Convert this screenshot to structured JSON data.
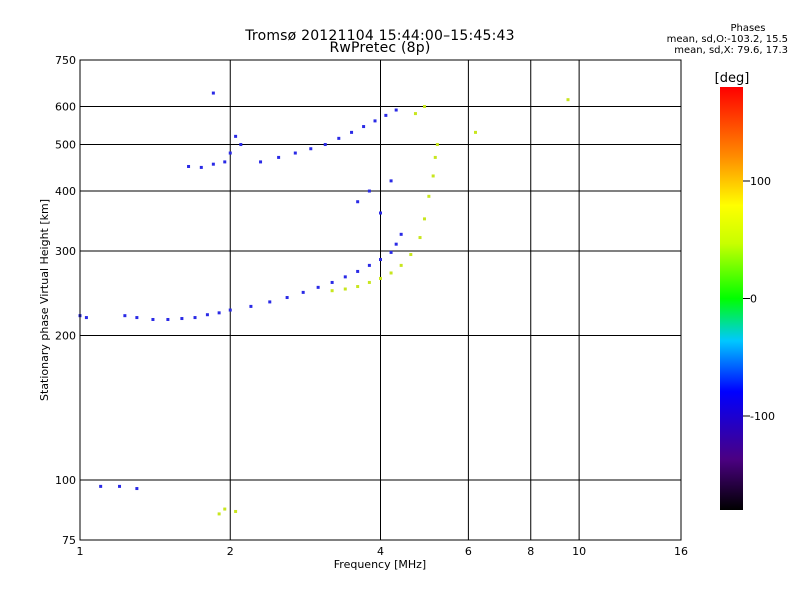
{
  "header": {
    "title": "Tromsø 20121104 15:44:00–15:45:43",
    "subtitle": "RwPretec (8p)"
  },
  "phases_box": {
    "heading": "Phases",
    "line_o": "mean, sd,O:-103.2, 15.5",
    "line_x": "mean, sd,X:  79.6, 17.3"
  },
  "colorbar": {
    "label": "[deg]",
    "range": [
      -180,
      180
    ],
    "ticks": [
      {
        "value": 100,
        "label": "100"
      },
      {
        "value": 0,
        "label": "0"
      },
      {
        "value": -100,
        "label": "-100"
      }
    ]
  },
  "chart_data": {
    "type": "scatter",
    "title": "Tromsø 20121104 15:44:00–15:45:43",
    "subtitle": "RwPretec (8p)",
    "xlabel": "Frequency [MHz]",
    "ylabel": "Stationary phase Virtual Height [km]",
    "x_scale": "log",
    "y_scale": "log",
    "xlim": [
      1,
      16
    ],
    "ylim": [
      75,
      750
    ],
    "x_ticks": [
      1,
      2,
      4,
      6,
      8,
      10,
      16
    ],
    "y_ticks": [
      75,
      100,
      200,
      300,
      400,
      500,
      600,
      750
    ],
    "grid": true,
    "color_axis": "phase [deg]",
    "series": [
      {
        "name": "O",
        "points": [
          [
            1.0,
            220
          ],
          [
            1.03,
            218
          ],
          [
            1.23,
            220
          ],
          [
            1.3,
            218
          ],
          [
            1.4,
            216
          ],
          [
            1.5,
            216
          ],
          [
            1.6,
            217
          ],
          [
            1.7,
            218
          ],
          [
            1.8,
            221
          ],
          [
            1.9,
            223
          ],
          [
            2.0,
            226
          ],
          [
            2.2,
            230
          ],
          [
            2.4,
            235
          ],
          [
            2.6,
            240
          ],
          [
            2.8,
            246
          ],
          [
            3.0,
            252
          ],
          [
            3.2,
            258
          ],
          [
            3.4,
            265
          ],
          [
            3.6,
            272
          ],
          [
            3.8,
            280
          ],
          [
            4.0,
            288
          ],
          [
            4.2,
            298
          ],
          [
            4.3,
            310
          ],
          [
            4.4,
            325
          ],
          [
            1.65,
            450
          ],
          [
            1.75,
            448
          ],
          [
            1.85,
            455
          ],
          [
            1.95,
            460
          ],
          [
            2.0,
            480
          ],
          [
            2.05,
            520
          ],
          [
            2.1,
            500
          ],
          [
            2.3,
            460
          ],
          [
            2.5,
            470
          ],
          [
            2.7,
            480
          ],
          [
            2.9,
            490
          ],
          [
            3.1,
            500
          ],
          [
            3.3,
            515
          ],
          [
            3.5,
            530
          ],
          [
            3.7,
            545
          ],
          [
            3.9,
            560
          ],
          [
            4.1,
            575
          ],
          [
            4.3,
            590
          ],
          [
            1.1,
            97
          ],
          [
            1.2,
            97
          ],
          [
            1.3,
            96
          ],
          [
            1.85,
            640
          ],
          [
            3.6,
            380
          ],
          [
            3.8,
            400
          ],
          [
            4.0,
            360
          ],
          [
            4.2,
            420
          ]
        ]
      },
      {
        "name": "X",
        "points": [
          [
            3.2,
            248
          ],
          [
            3.4,
            250
          ],
          [
            3.6,
            253
          ],
          [
            3.8,
            258
          ],
          [
            4.0,
            263
          ],
          [
            4.2,
            270
          ],
          [
            4.4,
            280
          ],
          [
            4.6,
            295
          ],
          [
            4.8,
            320
          ],
          [
            4.9,
            350
          ],
          [
            5.0,
            390
          ],
          [
            5.1,
            430
          ],
          [
            5.15,
            470
          ],
          [
            5.2,
            500
          ],
          [
            4.7,
            580
          ],
          [
            4.9,
            600
          ],
          [
            1.9,
            85
          ],
          [
            1.95,
            87
          ],
          [
            2.05,
            86
          ],
          [
            6.2,
            530
          ],
          [
            9.5,
            620
          ]
        ]
      }
    ]
  }
}
